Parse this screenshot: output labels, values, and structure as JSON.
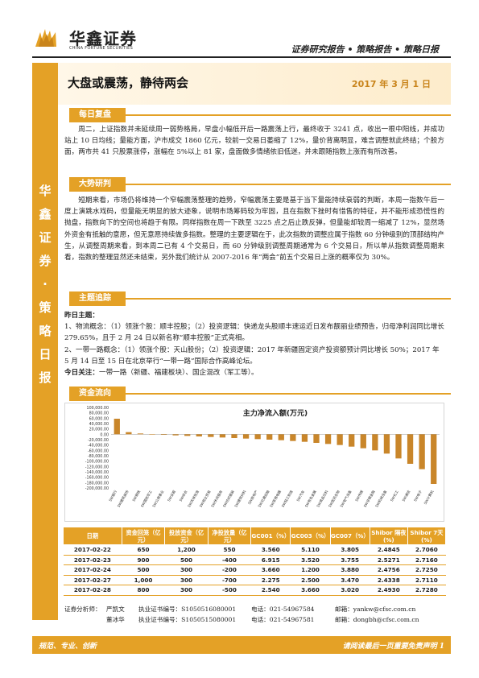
{
  "header": {
    "logo_cn": "华鑫证券",
    "logo_en": "CHINA FORTUNE SECURITIES",
    "subtitle": "证券研究报告 • 策略报告 • 策略日报"
  },
  "sidebar_text": "华鑫证券 · 策略日报",
  "title": "大盘或震荡，静待两会",
  "date": "2017 年 3 月 1 日",
  "sections": {
    "daily_review": {
      "label": "每日复盘",
      "text": "周二，上证指数并未延续周一弱势格局，早盘小幅低开后一路震荡上行，最终收于 3241 点，收出一根中阳线，并成功站上 10 日均线；量能方面，沪市成交 1860 亿元，较前一交易日萎缩了 12%，量价背离明显，难言调整就此终结；个股方面，两市共 41 只股票涨停，涨幅在 5%以上 81 家，盘面做多情绪依旧低迷，并未跟随指数上涨而有所改善。"
    },
    "trend": {
      "label": "大势研判",
      "text": "短期来看，市场仍将维持一个窄幅震荡整理的趋势，窄幅震荡主要是基于当下量能持续衰弱的判断，本周一指数午后一度上演跳水戏码，但量能无明显的放大迹象，说明市场筹码较为牢固，且在指数下挫时有惜售的特征，并不能形成恐慌性的抛盘，指数向下的空间也将趋于有限。同样指数在周一下跌至 3225 点之后止跌反弹，但量能却较周一缩减了 12%，显然场外资金有抵触的意愿，但无意愿持续做多指数。整理的主要逻辑在于，此次指数的调整应属于指数 60 分钟级别的顶部结构产生，从调整周期来看，到本周二已有 4 个交易日，而 60 分钟级别调整周期通常为 6 个交易日，所以单从指数调整周期来看，指数的整理显然还未结束，另外我们统计从 2007-2016 年“两会”前五个交易日上涨的概率仅为 30%。"
    },
    "themes": {
      "label": "主题追踪",
      "heading": "昨日主题：",
      "item1": "1、物流概念：（1）领涨个股：顺丰控股；（2）投资逻辑：快递龙头股顺丰速运近日发布靓丽业绩预告，归母净利润同比增长 279.65%，且于 2 月 24 日以新名称“顺丰控股”正式亮相。",
      "item2": "2、一带一路概念：（1）领涨个股：天山股份；（2）投资逻辑：2017 年新疆固定资产投资额预计同比增长 50%；2017 年 5 月 14 日至 15 日在北京举行“一带一路”国际合作高峰论坛。",
      "today_label": "今日关注：",
      "today_text": "一带一路（新疆、福建板块）、国企混改（军工等）。"
    },
    "capital_flow": {
      "label": "资金流向"
    }
  },
  "chart_data": {
    "type": "bar",
    "title": "主力净流入额(万元)",
    "ylim": [
      -200000,
      100000
    ],
    "yticks": [
      "100,000.00",
      "80,000.00",
      "60,000.00",
      "40,000.00",
      "20,000.00",
      "0.00",
      "-20,000.00",
      "-40,000.00",
      "-60,000.00",
      "-80,000.00",
      "-100,000.00",
      "-120,000.00",
      "-140,000.00",
      "-160,000.00",
      "-180,000.00",
      "-200,000.00"
    ],
    "categories": [
      "SW银行",
      "SW建筑装饰",
      "SW钢铁",
      "SW国防军工",
      "SW公用事业",
      "SW采掘",
      "SW综合",
      "SW农林牧渔",
      "SW商业贸易",
      "SW休闲服务",
      "SW纺织服装",
      "SW建筑材料",
      "SW房地产",
      "SW交通运输",
      "SW家用电器",
      "SW轻工制造",
      "SW汽车",
      "SW有色金属",
      "SW食品饮料",
      "SW医药生物",
      "SW电气设备",
      "SW传媒",
      "SW非银金融",
      "SW机械设备",
      "SW化工",
      "SW通信",
      "SW电子",
      "SW计算机"
    ],
    "values": [
      58000,
      8000,
      3000,
      1000,
      -2000,
      -4000,
      -6000,
      -8000,
      -10000,
      -12000,
      -14000,
      -16000,
      -18000,
      -20000,
      -22000,
      -25000,
      -28000,
      -32000,
      -36000,
      -40000,
      -46000,
      -52000,
      -60000,
      -72000,
      -90000,
      -110000,
      -130000,
      -185000
    ],
    "color": "#c9862a"
  },
  "table": {
    "headers": [
      "日期",
      "资金回笼（亿元）",
      "投放资金（亿元）",
      "净投放量（亿元）",
      "GC001（%）",
      "GC003（%）",
      "GC007（%）",
      "Shibor 隔夜(%)",
      "Shibor 7天(%)"
    ],
    "rows": [
      [
        "2017-02-22",
        "650",
        "1,200",
        "550",
        "3.560",
        "5.110",
        "3.805",
        "2.4845",
        "2.7060"
      ],
      [
        "2017-02-23",
        "900",
        "500",
        "-400",
        "6.915",
        "3.520",
        "3.755",
        "2.5271",
        "2.7160"
      ],
      [
        "2017-02-24",
        "500",
        "300",
        "-200",
        "3.660",
        "1.200",
        "3.880",
        "2.4756",
        "2.7250"
      ],
      [
        "2017-02-27",
        "1,000",
        "300",
        "-700",
        "2.275",
        "2.500",
        "3.470",
        "2.4338",
        "2.7110"
      ],
      [
        "2017-02-28",
        "800",
        "300",
        "-500",
        "2.540",
        "3.660",
        "3.020",
        "2.4930",
        "2.7280"
      ]
    ]
  },
  "analysts": {
    "label": "证券分析师：",
    "rows": [
      {
        "name": "严凯文",
        "cert": "执业证书编号：S1050516080001",
        "tel": "电话：021-54967584",
        "email": "邮箱：yankw@cfsc.com.cn"
      },
      {
        "name": "董冰华",
        "cert": "执业证书编号：S1050515080001",
        "tel": "电话：021-54967581",
        "email": "邮箱：dongbh@cfsc.com.cn"
      }
    ]
  },
  "footer": {
    "left": "规范、专业、创新",
    "right": "请阅读最后一页重要免责声明 1"
  }
}
